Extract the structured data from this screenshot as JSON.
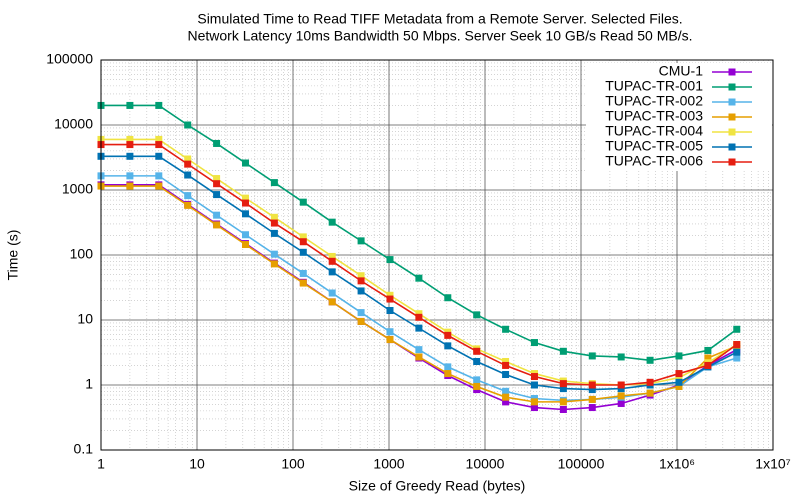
{
  "chart_data": {
    "type": "line",
    "title": "Simulated Time to Read TIFF Metadata from a Remote Server. Selected Files.",
    "subtitle": "Network Latency 10ms Bandwidth 50 Mbps. Server Seek 10 GB/s Read 50 MB/s.",
    "x_label": "Size of Greedy Read (bytes)",
    "y_label": "Time (s)",
    "x_log": true,
    "y_log": true,
    "grid": true,
    "minor_grid": true,
    "legend": "top-right",
    "x": [
      1,
      2,
      4,
      8,
      16,
      32,
      64,
      128,
      256,
      512,
      1024,
      2048,
      4096,
      8192,
      16384,
      32768,
      65536,
      131072,
      262144,
      524288,
      1048576,
      2097152,
      4194304
    ],
    "xlim": [
      1,
      10000000
    ],
    "xticks": [
      1,
      10,
      100,
      1000,
      10000,
      100000,
      {
        "value": 1000000,
        "label": "1x10⁶"
      },
      {
        "value": 10000000,
        "label": "1x10⁷"
      }
    ],
    "ylim": [
      0.1,
      100000
    ],
    "yticks": [
      0.1,
      1,
      10,
      100,
      1000,
      10000,
      100000
    ],
    "series": [
      {
        "name": "CMU-1",
        "color": "#9400d3",
        "values": [
          1200,
          1200,
          1200,
          600,
          300,
          150,
          75,
          38,
          19,
          9.5,
          5,
          2.6,
          1.4,
          0.85,
          0.55,
          0.45,
          0.42,
          0.45,
          0.52,
          0.7,
          1.0,
          2.0,
          3.5
        ]
      },
      {
        "name": "TUPAC-TR-001",
        "color": "#009e73",
        "values": [
          20000,
          20000,
          20000,
          10000,
          5200,
          2600,
          1300,
          650,
          320,
          165,
          85,
          44,
          22,
          12,
          7.2,
          4.5,
          3.3,
          2.8,
          2.7,
          2.4,
          2.8,
          3.4,
          7.2
        ]
      },
      {
        "name": "TUPAC-TR-002",
        "color": "#56b4e9",
        "values": [
          1650,
          1650,
          1650,
          820,
          410,
          205,
          103,
          52,
          26,
          13,
          6.6,
          3.5,
          1.9,
          1.2,
          0.8,
          0.62,
          0.58,
          0.6,
          0.65,
          0.75,
          0.95,
          1.9,
          2.6
        ]
      },
      {
        "name": "TUPAC-TR-003",
        "color": "#e69f00",
        "values": [
          1150,
          1150,
          1150,
          580,
          290,
          145,
          73,
          37,
          19,
          9.5,
          5,
          2.7,
          1.5,
          0.95,
          0.65,
          0.55,
          0.55,
          0.6,
          0.68,
          0.75,
          0.95,
          2.6,
          4.0
        ]
      },
      {
        "name": "TUPAC-TR-004",
        "color": "#f0e442",
        "values": [
          6000,
          6000,
          6000,
          3000,
          1500,
          750,
          380,
          190,
          95,
          48,
          24,
          12.5,
          6.5,
          3.6,
          2.3,
          1.5,
          1.15,
          1.05,
          1.0,
          1.05,
          1.3,
          2.2,
          4.2
        ]
      },
      {
        "name": "TUPAC-TR-005",
        "color": "#0072b2",
        "values": [
          3300,
          3300,
          3300,
          1700,
          850,
          430,
          215,
          110,
          55,
          28,
          14,
          7.5,
          4,
          2.3,
          1.45,
          1.0,
          0.88,
          0.85,
          0.88,
          1.0,
          1.1,
          1.9,
          3.2
        ]
      },
      {
        "name": "TUPAC-TR-006",
        "color": "#e51e10",
        "values": [
          5000,
          5000,
          5000,
          2500,
          1250,
          630,
          310,
          160,
          80,
          40,
          21,
          11,
          5.8,
          3.3,
          2.0,
          1.35,
          1.05,
          1.0,
          1.0,
          1.1,
          1.5,
          2.0,
          4.2
        ]
      }
    ]
  }
}
